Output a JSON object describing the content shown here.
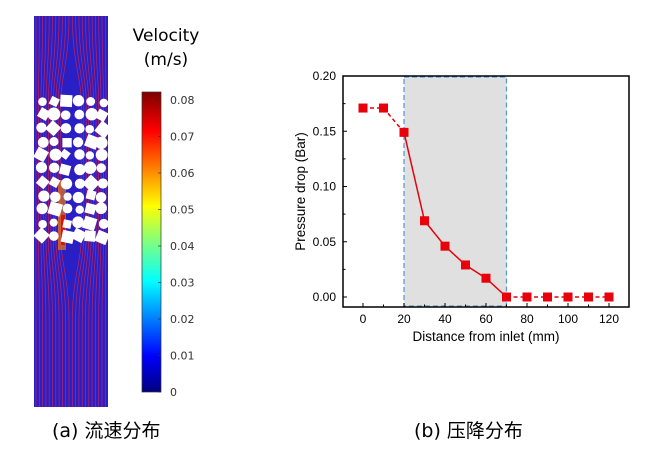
{
  "panel_a": {
    "caption": "(a) 流速分布",
    "colorbar": {
      "title_line1": "Velocity",
      "title_line2": "(m/s)",
      "ticks": [
        "0.08",
        "0.07",
        "0.06",
        "0.05",
        "0.04",
        "0.03",
        "0.02",
        "0.01",
        "0"
      ],
      "range": [
        0,
        0.08
      ],
      "colormap": "jet"
    }
  },
  "panel_b": {
    "caption": "(b) 压降分布"
  },
  "chart_data": {
    "type": "line",
    "title": "",
    "xlabel": "Distance from inlet (mm)",
    "ylabel": "Pressure drop (Bar)",
    "xlim": [
      -10,
      127
    ],
    "ylim": [
      -0.01,
      0.2
    ],
    "xticks": [
      0,
      20,
      40,
      60,
      80,
      100,
      120
    ],
    "xtick_labels": [
      "0",
      "20",
      "40",
      "60",
      "80",
      "100",
      "120"
    ],
    "yticks": [
      0,
      0.05,
      0.1,
      0.15,
      0.2
    ],
    "ytick_labels": [
      "0.00",
      "0.05",
      "0.10",
      "0.15",
      "0.20"
    ],
    "shaded_region": [
      20,
      70
    ],
    "grid": false,
    "series": [
      {
        "name": "Pressure drop",
        "color": "#e8000b",
        "marker": "square",
        "x": [
          0,
          10,
          20,
          30,
          40,
          50,
          60,
          70,
          80,
          90,
          100,
          110,
          120
        ],
        "values": [
          0.171,
          0.171,
          0.149,
          0.069,
          0.046,
          0.029,
          0.017,
          0,
          0,
          0,
          0,
          0,
          0
        ]
      }
    ]
  }
}
